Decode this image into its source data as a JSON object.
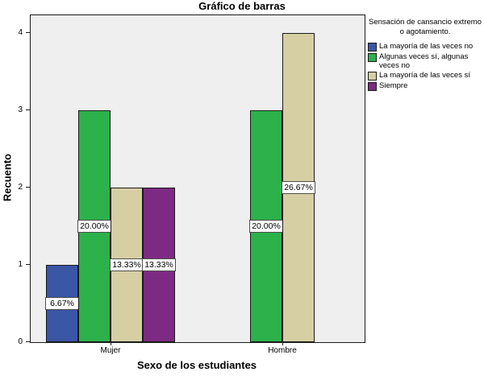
{
  "title": "Gráfico de barras",
  "chart_data": {
    "type": "bar",
    "title": "Gráfico de barras",
    "categories": [
      "Mujer",
      "Hombre"
    ],
    "series": [
      {
        "name": "La mayoría de las veces no",
        "color": "#3A56A5",
        "values": [
          1,
          0
        ],
        "percent_labels": [
          "6.67%",
          ""
        ]
      },
      {
        "name": "Algunas veces sí, algunas veces no",
        "color": "#2CB14B",
        "values": [
          3,
          3
        ],
        "percent_labels": [
          "20.00%",
          "20.00%"
        ]
      },
      {
        "name": "La mayoría de las veces sí",
        "color": "#D6CFA3",
        "values": [
          2,
          4
        ],
        "percent_labels": [
          "13.33%",
          "26.67%"
        ]
      },
      {
        "name": "Siempre",
        "color": "#7D2B82",
        "values": [
          2,
          0
        ],
        "percent_labels": [
          "13.33%",
          ""
        ]
      }
    ],
    "xlabel": "Sexo de los estudiantes",
    "ylabel": "Recuento",
    "ylim": [
      0,
      4
    ],
    "yticks": [
      0,
      1,
      2,
      3,
      4
    ],
    "grid": false,
    "plot_background": "#F0EFEF",
    "legend": {
      "position": "right",
      "title": "Sensación de cansancio extremo o agotamiento."
    }
  }
}
